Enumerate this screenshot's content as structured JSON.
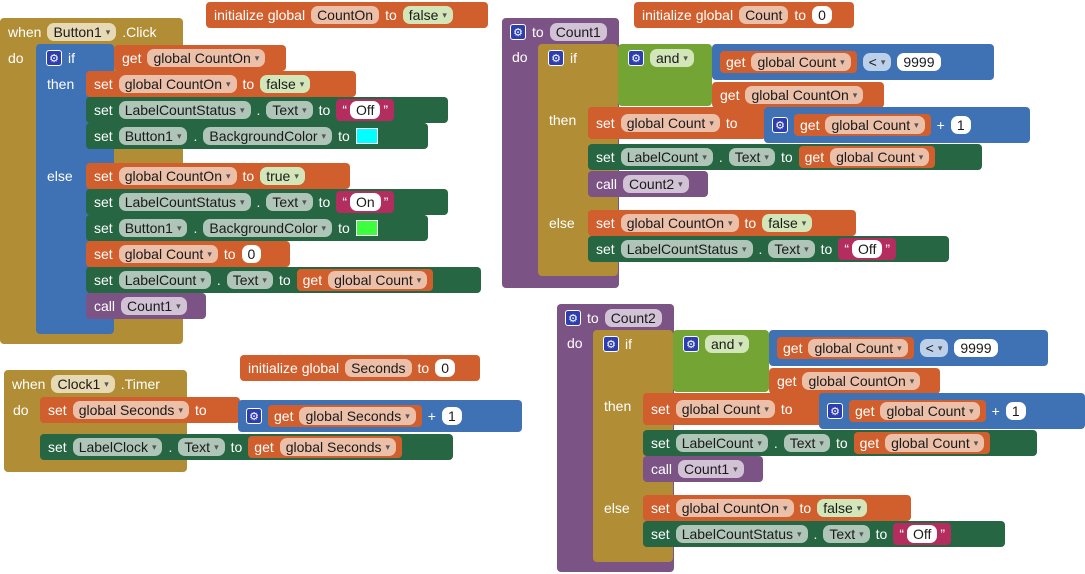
{
  "kw": {
    "when": "when",
    "do": "do",
    "if": "if",
    "then": "then",
    "else": "else",
    "set": "set",
    "to": "to",
    "get": "get",
    "call": "call",
    "and": "and",
    "init": "initialize global",
    "dot": ".",
    "plus": "+",
    "lt": "<",
    "quote_open": "“",
    "quote_close": "”",
    "gear": "⚙",
    "arrow": "▾"
  },
  "globals": {
    "countOn": {
      "name": "CountOn",
      "value": "false"
    },
    "count": {
      "name": "Count",
      "value": "0"
    },
    "seconds": {
      "name": "Seconds",
      "value": "0"
    }
  },
  "button1_click": {
    "component": "Button1",
    "event": ".Click",
    "if_get": "global CountOn",
    "then": {
      "set_var": "global CountOn",
      "set_val": "false",
      "label_comp": "LabelCountStatus",
      "label_prop": "Text",
      "label_text": "Off",
      "btn_comp": "Button1",
      "btn_prop": "BackgroundColor",
      "btn_color": "#00ffff"
    },
    "else": {
      "set_var": "global CountOn",
      "set_val": "true",
      "label_comp": "LabelCountStatus",
      "label_prop": "Text",
      "label_text": "On",
      "btn_comp": "Button1",
      "btn_prop": "BackgroundColor",
      "btn_color": "#3dff3d",
      "count_var": "global Count",
      "count_val": "0",
      "lc_comp": "LabelCount",
      "lc_prop": "Text",
      "lc_get": "global Count",
      "call": "Count1"
    }
  },
  "clock_timer": {
    "component": "Clock1",
    "event": ".Timer",
    "set_var": "global Seconds",
    "get_var": "global Seconds",
    "add": "1",
    "label_comp": "LabelClock",
    "label_prop": "Text",
    "label_get": "global Seconds"
  },
  "count1": {
    "name": "Count1",
    "cond_get": "global Count",
    "cond_op": "<",
    "cond_num": "9999",
    "cond_get2": "global CountOn",
    "then_set": "global Count",
    "then_get": "global Count",
    "then_add": "1",
    "label_comp": "LabelCount",
    "label_prop": "Text",
    "label_get": "global Count",
    "call": "Count2",
    "else_set": "global CountOn",
    "else_val": "false",
    "else_label": "LabelCountStatus",
    "else_prop": "Text",
    "else_text": "Off"
  },
  "count2": {
    "name": "Count2",
    "cond_get": "global Count",
    "cond_op": "<",
    "cond_num": "9999",
    "cond_get2": "global CountOn",
    "then_set": "global Count",
    "then_get": "global Count",
    "then_add": "1",
    "label_comp": "LabelCount",
    "label_prop": "Text",
    "label_get": "global Count",
    "call": "Count1",
    "else_set": "global CountOn",
    "else_val": "false",
    "else_label": "LabelCountStatus",
    "else_prop": "Text",
    "else_text": "Off"
  }
}
